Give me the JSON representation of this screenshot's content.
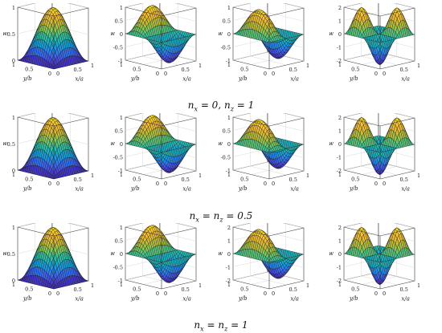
{
  "chart_data": {
    "type": "surface",
    "z_label": "w",
    "x_label": "x/a",
    "y_label": "y/b",
    "xlim": [
      0,
      1
    ],
    "ylim": [
      0,
      1
    ],
    "x_ticks": [
      "0",
      "0.5",
      "1"
    ],
    "y_ticks": [
      "0",
      "0.5",
      "1"
    ],
    "colormap": [
      "#3e26a8",
      "#4a46e0",
      "#2f7df6",
      "#14a5d6",
      "#2cc0a3",
      "#80c95a",
      "#d2ba31",
      "#fcbd3b",
      "#f6e61e"
    ],
    "rows": [
      {
        "caption": {
          "n1": "x",
          "eq1": " = 0, ",
          "n2": "z",
          "eq2": " = 1"
        },
        "plots": [
          {
            "mode": [
              1,
              1
            ],
            "zlim": [
              0,
              1
            ],
            "z_ticks": [
              "0",
              "0.5",
              "1"
            ]
          },
          {
            "mode": [
              2,
              1
            ],
            "zlim": [
              -1,
              1
            ],
            "z_ticks": [
              "-1",
              "-0.5",
              "0",
              "0.5",
              "1"
            ]
          },
          {
            "mode": [
              1,
              2
            ],
            "zlim": [
              -1,
              1
            ],
            "z_ticks": [
              "-1",
              "-0.5",
              "0",
              "0.5",
              "1"
            ]
          },
          {
            "mode": [
              2,
              2
            ],
            "zlim": [
              -2,
              2
            ],
            "z_ticks": [
              "-2",
              "-1",
              "0",
              "1",
              "2"
            ]
          }
        ]
      },
      {
        "caption": {
          "n1": "x",
          "eq1": " = ",
          "n2": "z",
          "eq2": " = 0.5"
        },
        "plots": [
          {
            "mode": [
              1,
              1
            ],
            "zlim": [
              0,
              1
            ],
            "z_ticks": [
              "0",
              "0.5",
              "1"
            ]
          },
          {
            "mode": [
              2,
              1
            ],
            "zlim": [
              -1,
              1
            ],
            "z_ticks": [
              "-1",
              "-0.5",
              "0",
              "0.5",
              "1"
            ]
          },
          {
            "mode": [
              1,
              2
            ],
            "zlim": [
              -1,
              1
            ],
            "z_ticks": [
              "-1",
              "-0.5",
              "0",
              "0.5",
              "1"
            ]
          },
          {
            "mode": [
              2,
              2
            ],
            "zlim": [
              -2,
              2
            ],
            "z_ticks": [
              "-2",
              "-1",
              "0",
              "1",
              "2"
            ]
          }
        ]
      },
      {
        "caption": {
          "n1": "x",
          "eq1": " = ",
          "n2": "z",
          "eq2": " = 1"
        },
        "plots": [
          {
            "mode": [
              1,
              1
            ],
            "zlim": [
              0,
              1
            ],
            "z_ticks": [
              "0",
              "0.5",
              "1"
            ]
          },
          {
            "mode": [
              2,
              1
            ],
            "zlim": [
              -1,
              1
            ],
            "z_ticks": [
              "-1",
              "-0.5",
              "0",
              "0.5",
              "1"
            ]
          },
          {
            "mode": [
              1,
              2
            ],
            "zlim": [
              -2,
              2
            ],
            "z_ticks": [
              "-2",
              "-1",
              "0",
              "1",
              "2"
            ]
          },
          {
            "mode": [
              2,
              2
            ],
            "zlim": [
              -2,
              2
            ],
            "z_ticks": [
              "-2",
              "-1",
              "0",
              "1",
              "2"
            ]
          }
        ]
      }
    ]
  }
}
